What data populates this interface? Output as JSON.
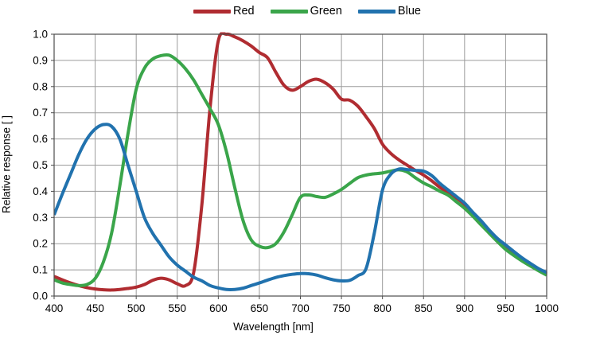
{
  "colors": {
    "background": "#ffffff",
    "grid": "#9b9b9b",
    "axis_border": "#4d4d4d",
    "tick": "#4d4d4d",
    "text": "#000000"
  },
  "chart_data": {
    "type": "line",
    "title": "",
    "xlabel": "Wavelength [nm]",
    "ylabel": "Relative response [ ]",
    "xlim": [
      400,
      1000
    ],
    "ylim": [
      0.0,
      1.0
    ],
    "grid": true,
    "legend_position": "top",
    "xticks": [
      400,
      450,
      500,
      550,
      600,
      650,
      700,
      750,
      800,
      850,
      900,
      950,
      1000
    ],
    "xtick_labels": [
      "400",
      "450",
      "500",
      "550",
      "600",
      "650",
      "700",
      "750",
      "800",
      "850",
      "900",
      "950",
      "1000"
    ],
    "yticks": [
      0.0,
      0.1,
      0.2,
      0.3,
      0.4,
      0.5,
      0.6,
      0.7,
      0.8,
      0.9,
      1.0
    ],
    "ytick_labels": [
      "0.0",
      "0.1",
      "0.2",
      "0.3",
      "0.4",
      "0.5",
      "0.6",
      "0.7",
      "0.8",
      "0.9",
      "1.0"
    ],
    "x": [
      400,
      410,
      420,
      430,
      440,
      450,
      460,
      470,
      480,
      490,
      500,
      510,
      520,
      530,
      540,
      550,
      560,
      570,
      580,
      590,
      600,
      610,
      620,
      630,
      640,
      650,
      660,
      670,
      680,
      690,
      700,
      710,
      720,
      730,
      740,
      750,
      760,
      770,
      780,
      790,
      800,
      810,
      820,
      830,
      840,
      850,
      860,
      870,
      880,
      890,
      900,
      910,
      920,
      930,
      940,
      950,
      960,
      970,
      980,
      990,
      1000
    ],
    "series": [
      {
        "name": "Red",
        "color": "#b02c31",
        "values": [
          0.075,
          0.062,
          0.05,
          0.04,
          0.032,
          0.027,
          0.024,
          0.023,
          0.025,
          0.029,
          0.034,
          0.044,
          0.06,
          0.068,
          0.062,
          0.047,
          0.04,
          0.09,
          0.35,
          0.72,
          0.975,
          1.0,
          0.99,
          0.975,
          0.955,
          0.93,
          0.91,
          0.855,
          0.805,
          0.786,
          0.8,
          0.82,
          0.828,
          0.815,
          0.79,
          0.752,
          0.748,
          0.725,
          0.685,
          0.64,
          0.58,
          0.545,
          0.52,
          0.5,
          0.48,
          0.462,
          0.44,
          0.415,
          0.395,
          0.375,
          0.35,
          0.315,
          0.28,
          0.245,
          0.212,
          0.185,
          0.162,
          0.14,
          0.12,
          0.1,
          0.085
        ]
      },
      {
        "name": "Green",
        "color": "#3aa54a",
        "values": [
          0.062,
          0.05,
          0.044,
          0.04,
          0.044,
          0.067,
          0.13,
          0.24,
          0.42,
          0.62,
          0.79,
          0.87,
          0.905,
          0.918,
          0.92,
          0.9,
          0.868,
          0.825,
          0.77,
          0.715,
          0.655,
          0.55,
          0.415,
          0.29,
          0.215,
          0.19,
          0.185,
          0.2,
          0.245,
          0.31,
          0.377,
          0.386,
          0.38,
          0.377,
          0.39,
          0.407,
          0.43,
          0.452,
          0.462,
          0.467,
          0.47,
          0.477,
          0.482,
          0.474,
          0.452,
          0.432,
          0.417,
          0.4,
          0.385,
          0.36,
          0.335,
          0.305,
          0.272,
          0.24,
          0.208,
          0.178,
          0.155,
          0.134,
          0.115,
          0.097,
          0.08
        ]
      },
      {
        "name": "Blue",
        "color": "#2172ae",
        "values": [
          0.31,
          0.39,
          0.465,
          0.54,
          0.6,
          0.638,
          0.655,
          0.648,
          0.6,
          0.5,
          0.4,
          0.3,
          0.24,
          0.195,
          0.15,
          0.118,
          0.095,
          0.072,
          0.058,
          0.04,
          0.031,
          0.025,
          0.025,
          0.03,
          0.04,
          0.05,
          0.061,
          0.071,
          0.078,
          0.083,
          0.086,
          0.085,
          0.08,
          0.07,
          0.062,
          0.058,
          0.06,
          0.078,
          0.105,
          0.24,
          0.405,
          0.465,
          0.485,
          0.483,
          0.48,
          0.477,
          0.46,
          0.43,
          0.405,
          0.38,
          0.355,
          0.32,
          0.288,
          0.252,
          0.22,
          0.195,
          0.17,
          0.146,
          0.125,
          0.105,
          0.09
        ]
      }
    ]
  }
}
